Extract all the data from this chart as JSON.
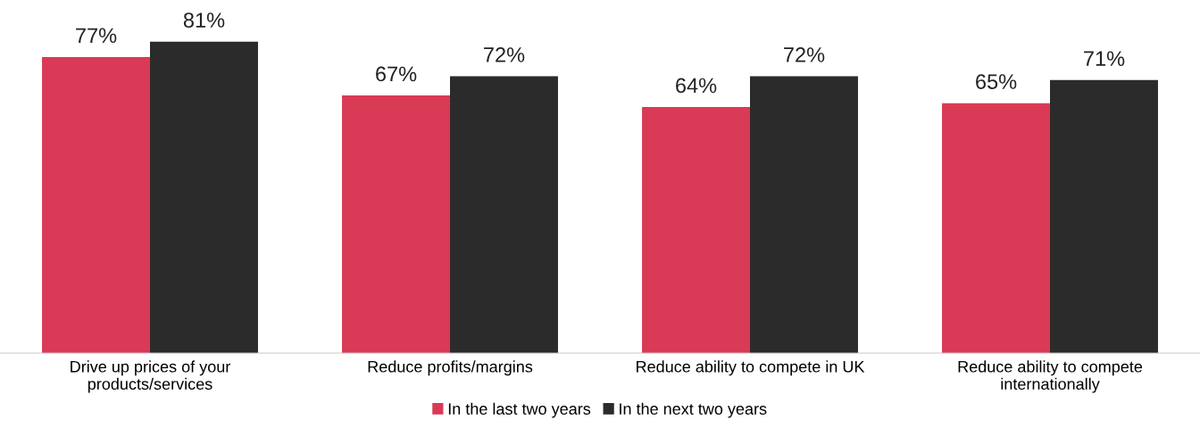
{
  "chart_data": {
    "type": "bar",
    "categories": [
      "Drive up prices of your\nproducts/services",
      "Reduce profits/margins",
      "Reduce ability to compete in UK",
      "Reduce ability to compete\ninternationally"
    ],
    "series": [
      {
        "name": "In the last two years",
        "color": "#d93a55",
        "values": [
          77,
          67,
          64,
          65
        ],
        "value_labels": [
          "77%",
          "67%",
          "64%",
          "65%"
        ]
      },
      {
        "name": "In the next two years",
        "color": "#2b2b2b",
        "values": [
          81,
          72,
          72,
          71
        ],
        "value_labels": [
          "81%",
          "72%",
          "72%",
          "71%"
        ]
      }
    ],
    "legend": "bottom",
    "grid": false
  }
}
